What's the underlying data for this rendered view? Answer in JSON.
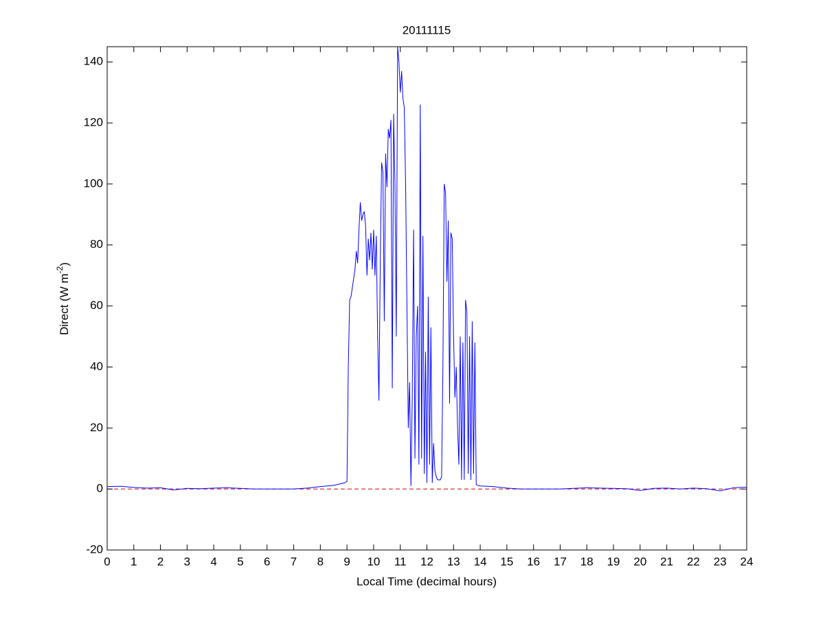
{
  "chart_data": {
    "type": "line",
    "title": "20111115",
    "xlabel": "Local Time (decimal hours)",
    "ylabel": [
      "Direct (W m",
      "-2",
      ")"
    ],
    "x": [
      0,
      0.5,
      1,
      1.5,
      2,
      2.5,
      3,
      3.5,
      4,
      4.5,
      5,
      5.5,
      6,
      6.5,
      7,
      7.5,
      8,
      8.5,
      8.9,
      9.0,
      9.05,
      9.1,
      9.15,
      9.2,
      9.3,
      9.35,
      9.4,
      9.45,
      9.5,
      9.55,
      9.6,
      9.65,
      9.7,
      9.75,
      9.8,
      9.85,
      9.9,
      9.95,
      10.0,
      10.05,
      10.1,
      10.15,
      10.2,
      10.25,
      10.3,
      10.35,
      10.4,
      10.45,
      10.5,
      10.55,
      10.6,
      10.65,
      10.7,
      10.75,
      10.8,
      10.85,
      10.9,
      10.95,
      11.0,
      11.05,
      11.1,
      11.15,
      11.2,
      11.25,
      11.3,
      11.35,
      11.4,
      11.45,
      11.5,
      11.55,
      11.6,
      11.65,
      11.7,
      11.75,
      11.8,
      11.85,
      11.9,
      11.95,
      12.0,
      12.05,
      12.1,
      12.15,
      12.2,
      12.25,
      12.3,
      12.35,
      12.4,
      12.45,
      12.5,
      12.55,
      12.6,
      12.65,
      12.7,
      12.75,
      12.8,
      12.85,
      12.9,
      12.95,
      13.0,
      13.05,
      13.1,
      13.15,
      13.2,
      13.25,
      13.3,
      13.35,
      13.4,
      13.45,
      13.5,
      13.55,
      13.6,
      13.65,
      13.7,
      13.75,
      13.8,
      13.85,
      13.9,
      14,
      14.5,
      15,
      15.5,
      16,
      17,
      17.5,
      18,
      18.5,
      19,
      19.5,
      20,
      20.5,
      21,
      21.5,
      22,
      22.5,
      23,
      23.5,
      24
    ],
    "series": [
      {
        "name": "Direct",
        "color": "#0000ff",
        "values": [
          0.8,
          0.9,
          0.5,
          0.3,
          0.4,
          -0.3,
          0.2,
          0.1,
          0.3,
          0.4,
          0.2,
          0,
          0,
          0,
          0,
          0.3,
          0.8,
          1.2,
          2,
          2.5,
          40,
          62,
          63,
          66,
          72,
          78,
          74,
          85,
          94,
          88,
          90,
          91,
          86,
          70,
          82,
          75,
          84,
          72,
          85,
          70,
          83,
          50,
          29,
          75,
          107,
          104,
          55,
          110,
          99,
          118,
          115,
          121,
          33,
          123,
          100,
          50,
          145,
          140,
          130,
          137,
          128,
          125,
          100,
          60,
          20,
          35,
          1,
          30,
          85,
          10,
          50,
          60,
          8,
          126,
          10,
          83,
          5,
          45,
          2,
          63,
          8,
          53,
          2,
          15,
          6,
          4,
          3,
          3,
          3,
          4,
          40,
          100,
          97,
          68,
          88,
          28,
          84,
          82,
          50,
          30,
          40,
          20,
          8,
          50,
          3,
          48,
          3,
          62,
          58,
          5,
          50,
          3,
          55,
          5,
          48,
          1.5,
          1.2,
          1,
          0.8,
          0.3,
          0,
          0,
          0,
          0.2,
          0.4,
          0.3,
          0.2,
          0.1,
          -0.5,
          0.2,
          0.3,
          0,
          0.3,
          0.1,
          -0.6,
          0.4,
          0.6
        ]
      }
    ],
    "zero_line": {
      "value": 0,
      "color": "#cc0000",
      "style": "dashed"
    },
    "xlim": [
      0,
      24
    ],
    "xticks": [
      0,
      1,
      2,
      3,
      4,
      5,
      6,
      7,
      8,
      9,
      10,
      11,
      12,
      13,
      14,
      15,
      16,
      17,
      18,
      19,
      20,
      21,
      22,
      23,
      24
    ],
    "ylim": [
      -20,
      145
    ],
    "yticks": [
      -20,
      0,
      20,
      40,
      60,
      80,
      100,
      120,
      140
    ],
    "grid": false
  }
}
